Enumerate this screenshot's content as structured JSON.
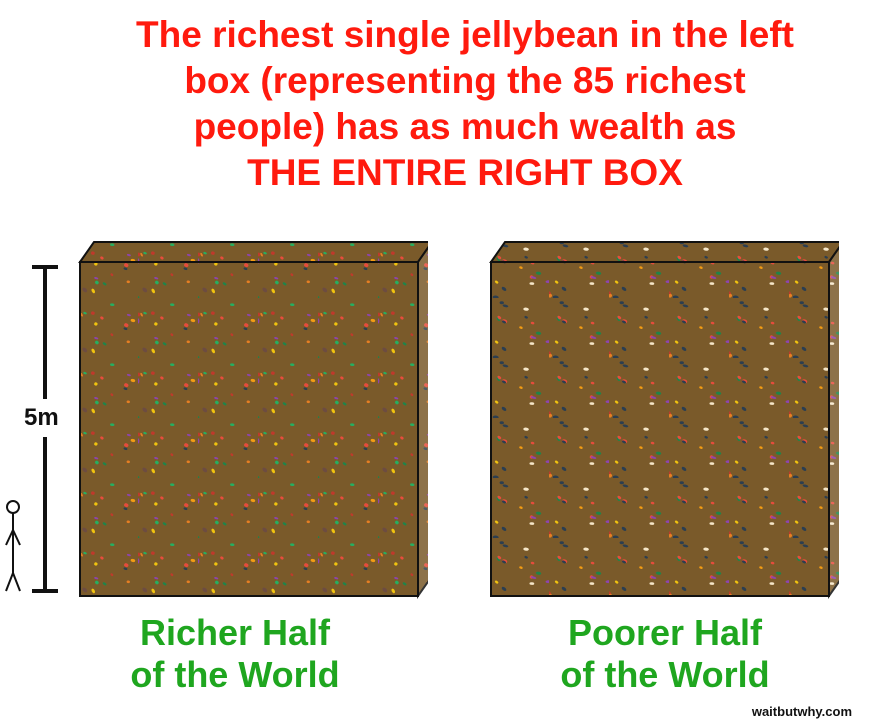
{
  "headline": {
    "line1": "The richest single jellybean in the left",
    "line2": "box (representing the 85 richest",
    "line3": "people) has as much wealth as",
    "line4": "THE ENTIRE RIGHT BOX"
  },
  "scale": {
    "label": "5m"
  },
  "boxes": [
    {
      "label_line1": "Richer Half",
      "label_line2": "of the World"
    },
    {
      "label_line1": "Poorer Half",
      "label_line2": "of the World"
    }
  ],
  "credit": "waitbutwhy.com",
  "colors": {
    "headline": "#ff1a0e",
    "labels": "#1fa61f",
    "jellybeans": [
      "#c0392b",
      "#e67e22",
      "#f1c40f",
      "#27ae60",
      "#1e8449",
      "#8e44ad",
      "#2c3e50",
      "#d35400",
      "#f5e6c8",
      "#6d4c41",
      "#e74c3c",
      "#f39c12"
    ]
  }
}
